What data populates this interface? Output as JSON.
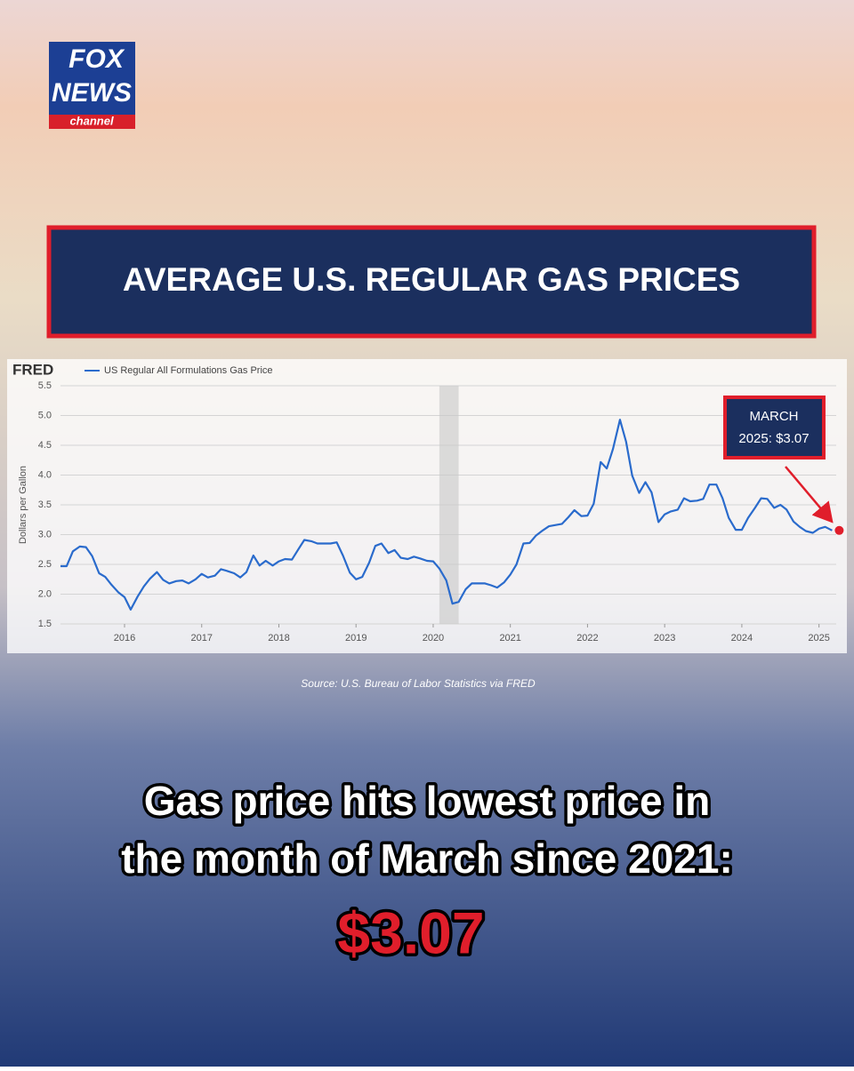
{
  "logo": {
    "line1": "FOX",
    "line2": "NEWS",
    "line3": "channel"
  },
  "header": {
    "title": "AVERAGE U.S. REGULAR GAS PRICES"
  },
  "chart_data": {
    "type": "line",
    "brand": "FRED",
    "y_label": "Dollars per Gallon",
    "grid": true,
    "xlim": [
      2015.17,
      2025.2
    ],
    "xticks": [
      2016,
      2017,
      2018,
      2019,
      2020,
      2021,
      2022,
      2023,
      2024,
      2025
    ],
    "ylim": [
      1.5,
      5.5
    ],
    "yticks": [
      1.5,
      {
        "value": 2,
        "label": "2.0"
      },
      2.5,
      {
        "value": 3,
        "label": "3.0"
      },
      3.5,
      {
        "value": 4,
        "label": "4.0"
      },
      4.5,
      {
        "value": 5,
        "label": "5.0"
      },
      5.5
    ],
    "recession": [
      2020.08,
      2020.33
    ],
    "x": [
      2015.17,
      2015.25,
      2015.33,
      2015.42,
      2015.5,
      2015.58,
      2015.67,
      2015.75,
      2015.83,
      2015.92,
      2016,
      2016.08,
      2016.17,
      2016.25,
      2016.33,
      2016.42,
      2016.5,
      2016.58,
      2016.67,
      2016.75,
      2016.83,
      2016.92,
      2017,
      2017.08,
      2017.17,
      2017.25,
      2017.33,
      2017.42,
      2017.5,
      2017.58,
      2017.67,
      2017.75,
      2017.83,
      2017.92,
      2018,
      2018.08,
      2018.17,
      2018.25,
      2018.33,
      2018.42,
      2018.5,
      2018.58,
      2018.67,
      2018.75,
      2018.83,
      2018.92,
      2019,
      2019.08,
      2019.17,
      2019.25,
      2019.33,
      2019.42,
      2019.5,
      2019.58,
      2019.67,
      2019.75,
      2019.83,
      2019.92,
      2020,
      2020.08,
      2020.17,
      2020.25,
      2020.33,
      2020.42,
      2020.5,
      2020.58,
      2020.67,
      2020.75,
      2020.83,
      2020.92,
      2021,
      2021.08,
      2021.17,
      2021.25,
      2021.33,
      2021.42,
      2021.5,
      2021.58,
      2021.67,
      2021.75,
      2021.83,
      2021.92,
      2022,
      2022.08,
      2022.17,
      2022.25,
      2022.33,
      2022.42,
      2022.5,
      2022.58,
      2022.67,
      2022.75,
      2022.83,
      2022.92,
      2023,
      2023.08,
      2023.17,
      2023.25,
      2023.33,
      2023.42,
      2023.5,
      2023.58,
      2023.67,
      2023.75,
      2023.83,
      2023.92,
      2024,
      2024.08,
      2024.17,
      2024.25,
      2024.33,
      2024.42,
      2024.5,
      2024.58,
      2024.67,
      2024.75,
      2024.83,
      2024.92,
      2025,
      2025.08,
      2025.17
    ],
    "series": [
      {
        "name": "US Regular All Formulations Gas Price",
        "color": "#2a6bcc",
        "values": [
          2.47,
          2.47,
          2.72,
          2.8,
          2.79,
          2.64,
          2.35,
          2.29,
          2.16,
          2.03,
          1.95,
          1.74,
          1.96,
          2.13,
          2.26,
          2.37,
          2.24,
          2.18,
          2.22,
          2.23,
          2.18,
          2.25,
          2.34,
          2.28,
          2.31,
          2.42,
          2.39,
          2.35,
          2.28,
          2.37,
          2.65,
          2.48,
          2.56,
          2.48,
          2.55,
          2.59,
          2.58,
          2.75,
          2.91,
          2.89,
          2.85,
          2.85,
          2.85,
          2.87,
          2.65,
          2.36,
          2.25,
          2.29,
          2.53,
          2.81,
          2.85,
          2.69,
          2.74,
          2.61,
          2.59,
          2.63,
          2.6,
          2.56,
          2.55,
          2.43,
          2.23,
          1.84,
          1.87,
          2.08,
          2.18,
          2.18,
          2.18,
          2.15,
          2.11,
          2.2,
          2.33,
          2.5,
          2.85,
          2.86,
          2.98,
          3.07,
          3.14,
          3.16,
          3.18,
          3.29,
          3.41,
          3.31,
          3.32,
          3.52,
          4.22,
          4.11,
          4.44,
          4.93,
          4.56,
          3.99,
          3.7,
          3.88,
          3.71,
          3.21,
          3.34,
          3.39,
          3.42,
          3.61,
          3.56,
          3.57,
          3.6,
          3.84,
          3.84,
          3.61,
          3.28,
          3.08,
          3.08,
          3.28,
          3.45,
          3.61,
          3.6,
          3.45,
          3.5,
          3.42,
          3.22,
          3.13,
          3.06,
          3.03,
          3.1,
          3.13,
          3.07
        ]
      }
    ],
    "annotation": {
      "text": [
        "MARCH",
        "2025: $3.07"
      ],
      "x": 2025.17,
      "y": 3.07,
      "color": "#e01e2b"
    }
  },
  "source": "Source: U.S. Bureau of Labor Statistics via FRED",
  "headline": {
    "lines": [
      "Gas price hits lowest price in",
      "the month of March since 2021:"
    ],
    "price": "$3.07"
  }
}
